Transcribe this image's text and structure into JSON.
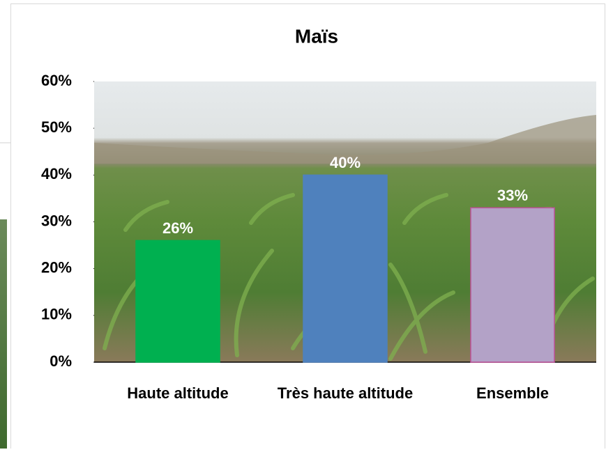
{
  "chart_data": {
    "type": "bar",
    "title": "Maïs",
    "categories": [
      "Haute altitude",
      "Très haute altitude",
      "Ensemble"
    ],
    "values": [
      26,
      40,
      33
    ],
    "value_labels": [
      "26%",
      "40%",
      "33%"
    ],
    "colors": [
      "#00b050",
      "#4f81bd",
      "#b3a2c7"
    ],
    "ylim": [
      0,
      60
    ],
    "yticks": [
      {
        "value": 0,
        "label": "0%"
      },
      {
        "value": 10,
        "label": "10%"
      },
      {
        "value": 20,
        "label": "20%"
      },
      {
        "value": 30,
        "label": "30%"
      },
      {
        "value": 40,
        "label": "40%"
      },
      {
        "value": 50,
        "label": "50%"
      },
      {
        "value": 60,
        "label": "60%"
      }
    ]
  }
}
